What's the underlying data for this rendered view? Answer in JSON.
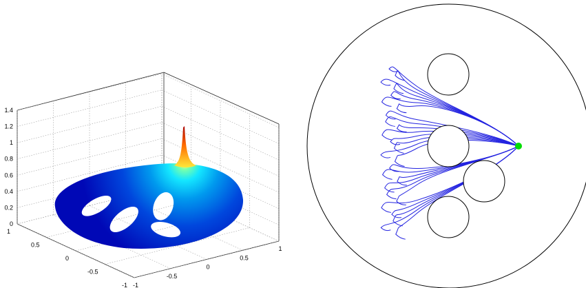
{
  "chart_data": [
    {
      "type": "surface",
      "title": "",
      "xlabel": "",
      "ylabel": "",
      "zlabel": "",
      "colormap": "jet",
      "grid": true,
      "domain": "ellipse with four elliptical holes",
      "xlim": [
        -1,
        1
      ],
      "ylim": [
        -1,
        1
      ],
      "zlim": [
        0,
        1.4
      ],
      "x_ticks": [
        "-1",
        "-0.5",
        "0",
        "0.5",
        "1"
      ],
      "y_ticks": [
        "-1",
        "-0.5",
        "0",
        "0.5",
        "1"
      ],
      "z_ticks": [
        "0",
        "0.2",
        "0.4",
        "0.6",
        "0.8",
        "1",
        "1.2",
        "1.4"
      ],
      "peak_value": 1.15,
      "base_value": 0.02
    },
    {
      "type": "trajectories",
      "title": "",
      "line_color": "#2323e0",
      "source_marker_color": "#00dd00",
      "obstacles": 4,
      "trajectory_count": 26,
      "boundary": "circle"
    }
  ]
}
